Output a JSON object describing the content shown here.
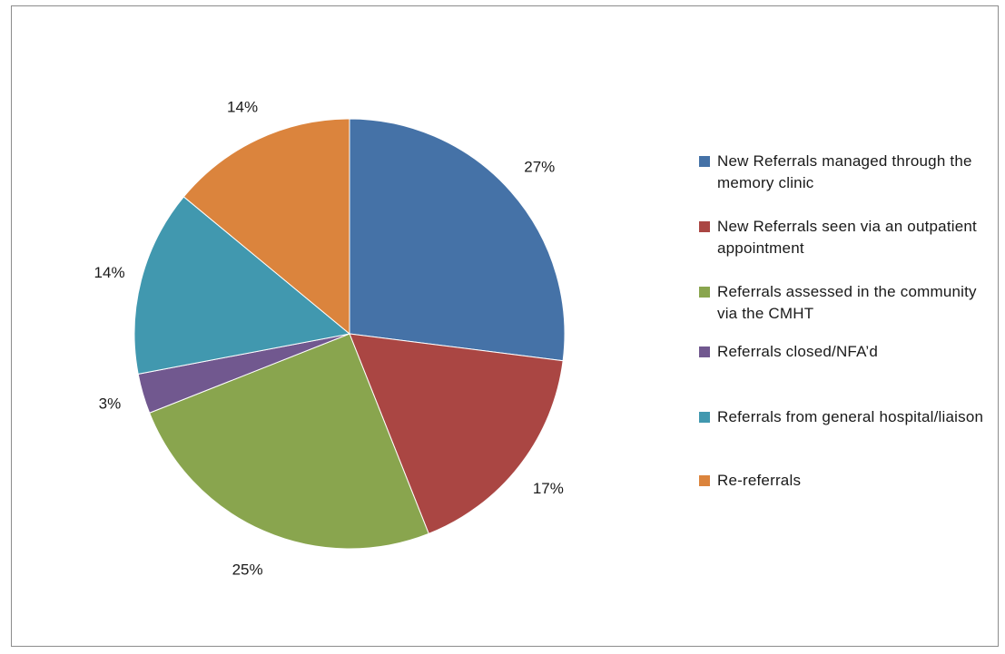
{
  "chart_data": {
    "type": "pie",
    "title": "",
    "slices": [
      {
        "label": "New Referrals managed through the memory clinic",
        "value": 27,
        "display": "27%",
        "color": "#4572a7"
      },
      {
        "label": "New Referrals seen via an outpatient appointment",
        "value": 17,
        "display": "17%",
        "color": "#aa4643"
      },
      {
        "label": "Referrals assessed in the community via the CMHT",
        "value": 25,
        "display": "25%",
        "color": "#89a54e"
      },
      {
        "label": "Referrals closed/NFA’d",
        "value": 3,
        "display": "3%",
        "color": "#71588f"
      },
      {
        "label": "Referrals from general hospital/liaison",
        "value": 14,
        "display": "14%",
        "color": "#4198af"
      },
      {
        "label": "Re-referrals",
        "value": 14,
        "display": "14%",
        "color": "#db843d"
      }
    ],
    "legend_position": "right",
    "start_angle": "12 o'clock",
    "direction": "clockwise"
  }
}
